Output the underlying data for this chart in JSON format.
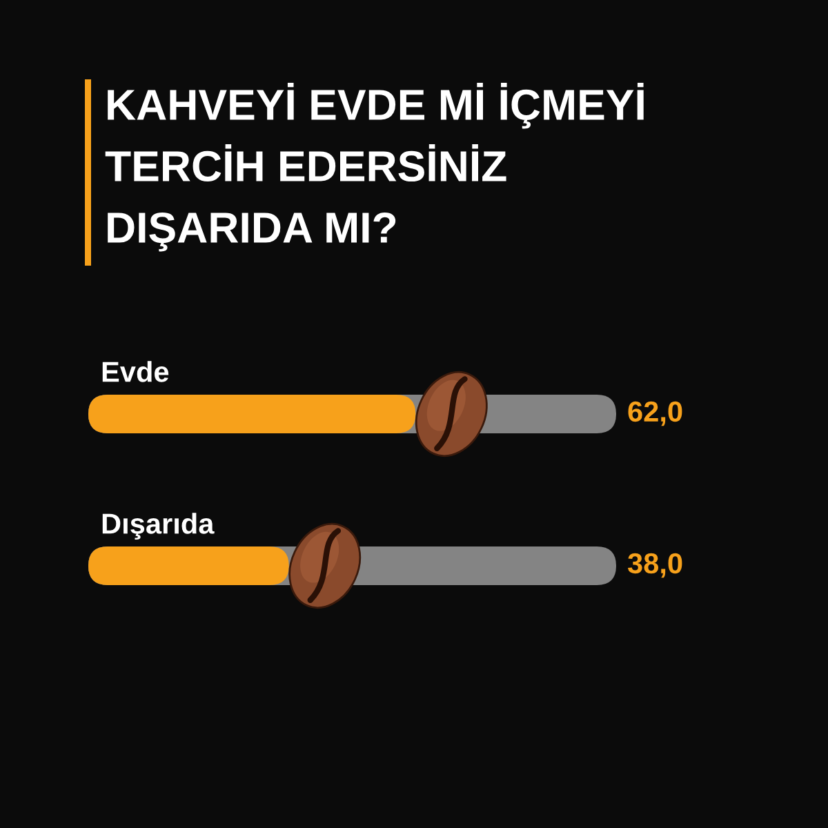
{
  "chart_data": {
    "type": "bar",
    "orientation": "horizontal",
    "title": "KAHVEYİ EVDE Mİ İÇMEYİ\nTERCİH EDERSİNİZ\nDIŞARIDA MI?",
    "categories": [
      "Evde",
      "Dışarıda"
    ],
    "values": [
      62.0,
      38.0
    ],
    "value_labels": [
      "62,0",
      "38,0"
    ],
    "color": "#f7a11b",
    "xlim": [
      0,
      100
    ],
    "tick_labels": "y"
  }
}
